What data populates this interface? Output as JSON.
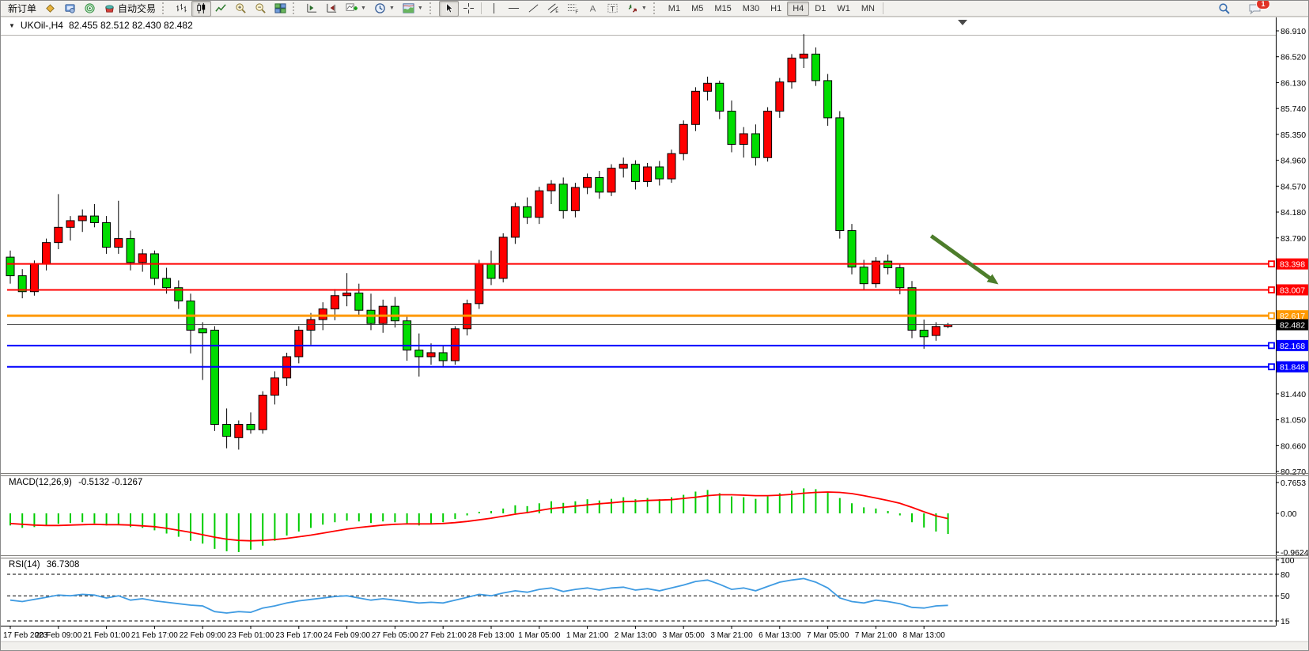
{
  "window": {
    "chat_badge": "1"
  },
  "toolbar": {
    "new_order_label": "新订单",
    "autotrading_label": "自动交易",
    "timeframes": [
      "M1",
      "M5",
      "M15",
      "M30",
      "H1",
      "H4",
      "D1",
      "W1",
      "MN"
    ],
    "active_timeframe": "H4",
    "active_chart_type": "candles",
    "active_tool": "cursor",
    "tool_glyphs": {
      "channel": "E",
      "fibonacci": "F",
      "text": "A",
      "label": "T"
    }
  },
  "chart": {
    "symbol_period": "UKOil-,H4",
    "ohlc_line": "82.455 82.512 82.430 82.482"
  },
  "chart_data": {
    "type": "candlestick",
    "symbol": "UKOil-",
    "timeframe": "H4",
    "colors": {
      "bull": "#ff0000",
      "bear": "#00dd00",
      "wick": "#000000",
      "macd_hist": "#00cc00",
      "macd_signal": "#ff0000",
      "rsi_line": "#3f9be2",
      "arrow": "#4d7d2b",
      "bid_line": "#3a3a3a"
    },
    "price_axis_ticks": [
      86.91,
      86.52,
      86.13,
      85.74,
      85.35,
      84.96,
      84.57,
      84.18,
      83.79,
      81.44,
      81.05,
      80.66,
      80.27
    ],
    "time_labels": [
      "17 Feb 2023",
      "20 Feb 09:00",
      "21 Feb 01:00",
      "21 Feb 17:00",
      "22 Feb 09:00",
      "23 Feb 01:00",
      "23 Feb 17:00",
      "24 Feb 09:00",
      "27 Feb 05:00",
      "27 Feb 21:00",
      "28 Feb 13:00",
      "1 Mar 05:00",
      "1 Mar 21:00",
      "2 Mar 13:00",
      "3 Mar 05:00",
      "3 Mar 21:00",
      "6 Mar 13:00",
      "7 Mar 05:00",
      "7 Mar 21:00",
      "8 Mar 13:00"
    ],
    "candles": [
      [
        83.5,
        83.6,
        83.1,
        83.22
      ],
      [
        83.22,
        83.32,
        82.88,
        82.98
      ],
      [
        82.98,
        83.45,
        82.92,
        83.4
      ],
      [
        83.4,
        83.78,
        83.3,
        83.72
      ],
      [
        83.72,
        84.45,
        83.62,
        83.95
      ],
      [
        83.95,
        84.12,
        83.75,
        84.05
      ],
      [
        84.05,
        84.22,
        83.88,
        84.12
      ],
      [
        84.12,
        84.3,
        83.95,
        84.02
      ],
      [
        84.02,
        84.12,
        83.55,
        83.65
      ],
      [
        83.65,
        84.35,
        83.55,
        83.78
      ],
      [
        83.78,
        83.9,
        83.3,
        83.42
      ],
      [
        83.42,
        83.62,
        83.28,
        83.55
      ],
      [
        83.55,
        83.6,
        83.08,
        83.18
      ],
      [
        83.18,
        83.34,
        82.95,
        83.04
      ],
      [
        83.04,
        83.15,
        82.72,
        82.84
      ],
      [
        82.84,
        82.95,
        82.05,
        82.4
      ],
      [
        82.42,
        82.52,
        81.65,
        82.36
      ],
      [
        82.4,
        82.46,
        80.88,
        80.98
      ],
      [
        80.98,
        81.22,
        80.62,
        80.8
      ],
      [
        80.78,
        81.04,
        80.6,
        80.98
      ],
      [
        80.98,
        81.16,
        80.84,
        80.9
      ],
      [
        80.9,
        81.48,
        80.84,
        81.42
      ],
      [
        81.42,
        81.78,
        81.28,
        81.68
      ],
      [
        81.68,
        82.06,
        81.56,
        82.0
      ],
      [
        82.0,
        82.46,
        81.9,
        82.4
      ],
      [
        82.4,
        82.66,
        82.18,
        82.56
      ],
      [
        82.56,
        82.82,
        82.4,
        82.72
      ],
      [
        82.72,
        83.02,
        82.55,
        82.92
      ],
      [
        82.92,
        83.26,
        82.76,
        82.96
      ],
      [
        82.96,
        83.1,
        82.6,
        82.7
      ],
      [
        82.7,
        82.95,
        82.4,
        82.5
      ],
      [
        82.5,
        82.86,
        82.36,
        82.76
      ],
      [
        82.76,
        82.9,
        82.44,
        82.54
      ],
      [
        82.54,
        82.62,
        81.94,
        82.1
      ],
      [
        82.1,
        82.35,
        81.7,
        82.0
      ],
      [
        82.0,
        82.2,
        81.88,
        82.06
      ],
      [
        82.06,
        82.16,
        81.84,
        81.94
      ],
      [
        81.94,
        82.46,
        81.88,
        82.42
      ],
      [
        82.42,
        82.86,
        82.32,
        82.8
      ],
      [
        82.8,
        83.46,
        82.72,
        83.4
      ],
      [
        83.4,
        83.6,
        83.08,
        83.18
      ],
      [
        83.18,
        83.86,
        83.12,
        83.8
      ],
      [
        83.8,
        84.32,
        83.7,
        84.26
      ],
      [
        84.26,
        84.4,
        84.0,
        84.1
      ],
      [
        84.1,
        84.56,
        84.0,
        84.5
      ],
      [
        84.5,
        84.66,
        84.3,
        84.6
      ],
      [
        84.6,
        84.7,
        84.08,
        84.2
      ],
      [
        84.2,
        84.62,
        84.1,
        84.55
      ],
      [
        84.55,
        84.76,
        84.45,
        84.7
      ],
      [
        84.7,
        84.8,
        84.38,
        84.48
      ],
      [
        84.48,
        84.9,
        84.42,
        84.84
      ],
      [
        84.84,
        85.0,
        84.7,
        84.9
      ],
      [
        84.9,
        84.96,
        84.52,
        84.64
      ],
      [
        84.64,
        84.92,
        84.56,
        84.86
      ],
      [
        84.86,
        84.95,
        84.58,
        84.68
      ],
      [
        84.68,
        85.12,
        84.62,
        85.06
      ],
      [
        85.06,
        85.56,
        84.96,
        85.5
      ],
      [
        85.5,
        86.06,
        85.4,
        86.0
      ],
      [
        86.0,
        86.22,
        85.86,
        86.12
      ],
      [
        86.12,
        86.16,
        85.58,
        85.7
      ],
      [
        85.7,
        85.86,
        85.08,
        85.2
      ],
      [
        85.2,
        85.46,
        85.0,
        85.36
      ],
      [
        85.36,
        85.5,
        84.88,
        85.0
      ],
      [
        85.0,
        85.76,
        84.94,
        85.7
      ],
      [
        85.7,
        86.2,
        85.6,
        86.14
      ],
      [
        86.14,
        86.56,
        86.04,
        86.5
      ],
      [
        86.5,
        86.86,
        86.35,
        86.56
      ],
      [
        86.56,
        86.66,
        86.08,
        86.16
      ],
      [
        86.16,
        86.26,
        85.48,
        85.6
      ],
      [
        85.6,
        85.7,
        83.78,
        83.9
      ],
      [
        83.9,
        84.0,
        83.24,
        83.35
      ],
      [
        83.35,
        83.46,
        83.0,
        83.1
      ],
      [
        83.1,
        83.5,
        83.04,
        83.44
      ],
      [
        83.44,
        83.54,
        83.24,
        83.34
      ],
      [
        83.34,
        83.4,
        82.94,
        83.04
      ],
      [
        83.04,
        83.14,
        82.28,
        82.4
      ],
      [
        82.4,
        82.56,
        82.12,
        82.3
      ],
      [
        82.32,
        82.52,
        82.24,
        82.455
      ],
      [
        82.455,
        82.512,
        82.43,
        82.482
      ]
    ],
    "hlines": [
      {
        "price": 83.398,
        "label": "83.398",
        "color": "#ff0000",
        "width": 2
      },
      {
        "price": 83.007,
        "label": "83.007",
        "color": "#ff0000",
        "width": 2
      },
      {
        "price": 82.617,
        "label": "82.617",
        "color": "#ff9900",
        "width": 3
      },
      {
        "price": 82.168,
        "label": "82.168",
        "color": "#0000ff",
        "width": 2
      },
      {
        "price": 81.848,
        "label": "81.848",
        "color": "#0000ff",
        "width": 2
      }
    ],
    "bid": {
      "price": 82.482,
      "label": "82.482"
    },
    "arrow_annotation": {
      "from_index": 76.6,
      "from_price": 83.82,
      "to_index": 82.2,
      "to_price": 83.09
    },
    "macd": {
      "label": "MACD(12,26,9)",
      "values_text": "-0.5132 -0.1267",
      "axis_labels": [
        {
          "value": 0.7653,
          "text": "0.7653"
        },
        {
          "value": 0,
          "text": "0.00"
        },
        {
          "value": -0.9624,
          "text": "-0.9624"
        }
      ],
      "histogram": [
        -0.3,
        -0.36,
        -0.34,
        -0.3,
        -0.26,
        -0.24,
        -0.22,
        -0.25,
        -0.3,
        -0.28,
        -0.34,
        -0.36,
        -0.42,
        -0.5,
        -0.58,
        -0.68,
        -0.75,
        -0.88,
        -0.94,
        -0.96,
        -0.9,
        -0.8,
        -0.68,
        -0.55,
        -0.45,
        -0.36,
        -0.28,
        -0.22,
        -0.18,
        -0.2,
        -0.24,
        -0.2,
        -0.22,
        -0.26,
        -0.3,
        -0.26,
        -0.22,
        -0.14,
        -0.05,
        0.04,
        0.06,
        0.12,
        0.2,
        0.18,
        0.25,
        0.3,
        0.26,
        0.3,
        0.35,
        0.32,
        0.36,
        0.4,
        0.35,
        0.38,
        0.35,
        0.4,
        0.46,
        0.54,
        0.58,
        0.5,
        0.42,
        0.4,
        0.36,
        0.42,
        0.5,
        0.56,
        0.62,
        0.6,
        0.52,
        0.38,
        0.25,
        0.15,
        0.12,
        0.06,
        -0.05,
        -0.22,
        -0.35,
        -0.45,
        -0.51
      ],
      "signal": [
        -0.25,
        -0.27,
        -0.29,
        -0.3,
        -0.3,
        -0.29,
        -0.28,
        -0.27,
        -0.28,
        -0.28,
        -0.29,
        -0.31,
        -0.33,
        -0.37,
        -0.42,
        -0.47,
        -0.53,
        -0.59,
        -0.64,
        -0.67,
        -0.68,
        -0.67,
        -0.65,
        -0.62,
        -0.58,
        -0.54,
        -0.49,
        -0.44,
        -0.39,
        -0.35,
        -0.32,
        -0.29,
        -0.27,
        -0.26,
        -0.26,
        -0.26,
        -0.25,
        -0.23,
        -0.2,
        -0.16,
        -0.12,
        -0.07,
        -0.02,
        0.02,
        0.07,
        0.12,
        0.15,
        0.18,
        0.21,
        0.24,
        0.26,
        0.29,
        0.3,
        0.32,
        0.33,
        0.34,
        0.37,
        0.4,
        0.44,
        0.46,
        0.46,
        0.45,
        0.44,
        0.44,
        0.45,
        0.47,
        0.5,
        0.52,
        0.53,
        0.52,
        0.49,
        0.44,
        0.38,
        0.32,
        0.25,
        0.15,
        0.04,
        -0.06,
        -0.13
      ]
    },
    "rsi": {
      "label": "RSI(14)",
      "value_text": "36.7308",
      "axis_labels": [
        100,
        80,
        50,
        15
      ],
      "dashed_levels": [
        80,
        50,
        15
      ],
      "series": [
        44,
        42,
        45,
        48,
        51,
        50,
        52,
        51,
        47,
        50,
        44,
        46,
        43,
        41,
        39,
        37,
        36,
        28,
        26,
        28,
        27,
        33,
        36,
        40,
        43,
        45,
        47,
        49,
        50,
        47,
        44,
        46,
        44,
        42,
        40,
        41,
        40,
        44,
        48,
        52,
        50,
        54,
        57,
        55,
        59,
        61,
        56,
        59,
        61,
        58,
        61,
        62,
        58,
        60,
        57,
        61,
        65,
        70,
        72,
        66,
        59,
        61,
        57,
        63,
        69,
        72,
        74,
        69,
        61,
        47,
        42,
        40,
        44,
        42,
        39,
        34,
        33,
        36,
        36.73
      ]
    }
  }
}
